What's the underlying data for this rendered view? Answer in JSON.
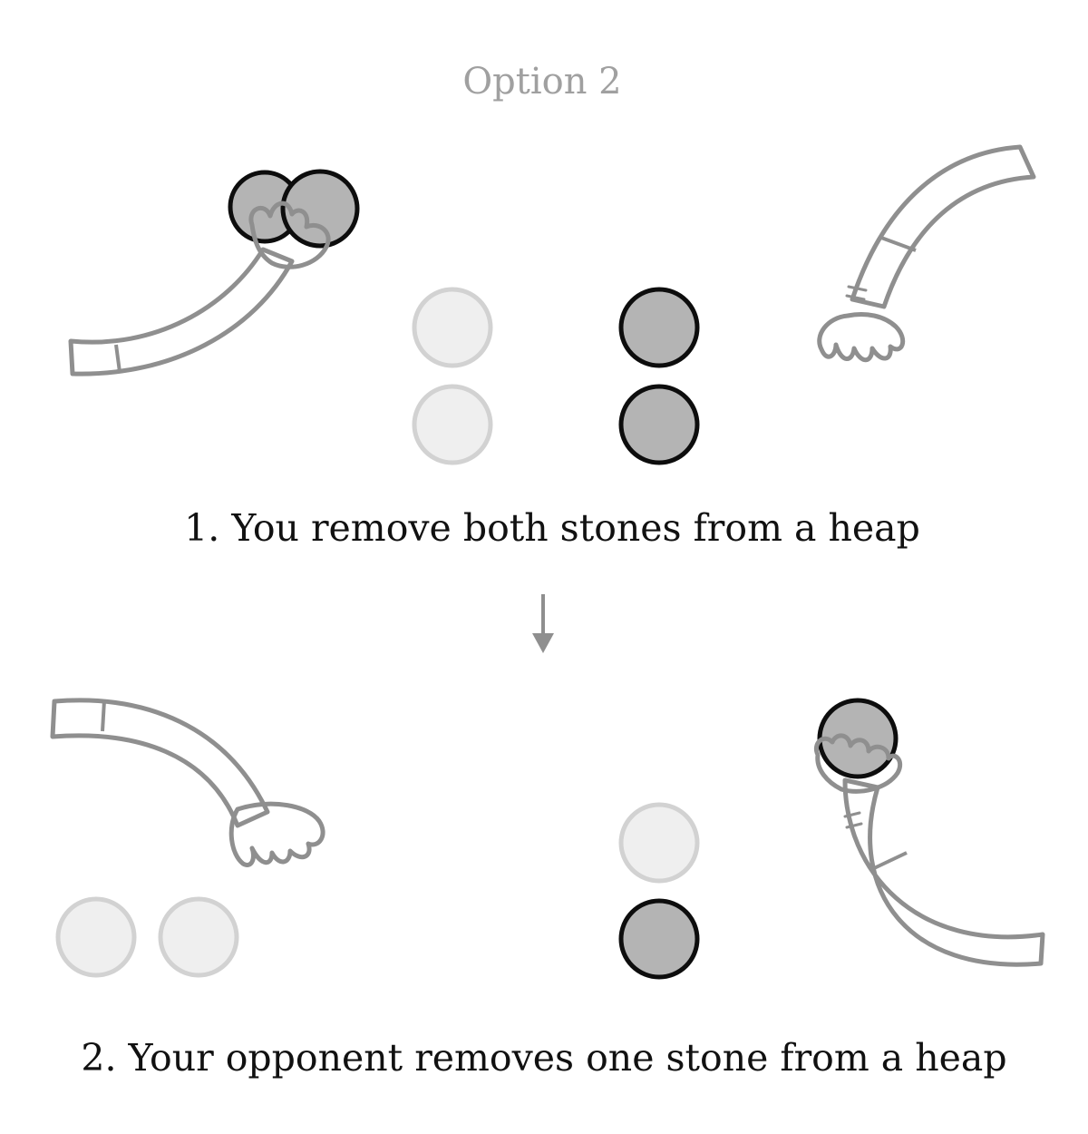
{
  "title": "Option 2",
  "steps": [
    {
      "label": "1. You remove both stones from a heap"
    },
    {
      "label": "2. Your opponent removes one stone from a heap"
    }
  ],
  "colors": {
    "stone_dark_fill": "#b4b4b4",
    "stone_dark_stroke": "#0d0d0d",
    "stone_light_fill": "#efefef",
    "stone_light_stroke": "#d2d2d2",
    "arm_fill": "#f8f7f1",
    "arm_stroke": "#8f8f8f",
    "arrow": "#8f8f8f",
    "title": "#a0a0a0"
  }
}
